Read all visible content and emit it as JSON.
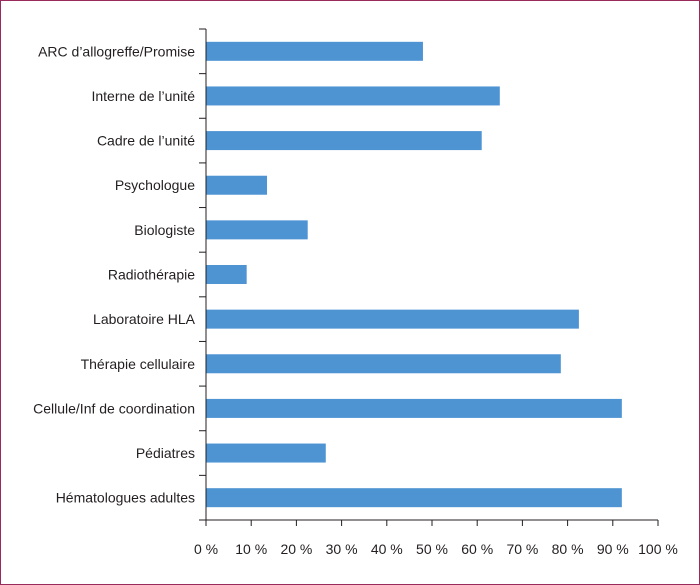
{
  "chart_data": {
    "type": "bar",
    "orientation": "horizontal",
    "categories": [
      "ARC d’allogreffe/Promise",
      "Interne de l’unité",
      "Cadre de l’unité",
      "Psychologue",
      "Biologiste",
      "Radiothérapie",
      "Laboratoire HLA",
      "Thérapie cellulaire",
      "Cellule/Inf de coordination",
      "Pédiatres",
      "Hématologues adultes"
    ],
    "values": [
      48,
      65,
      61,
      13.5,
      22.5,
      9,
      82.5,
      78.5,
      92,
      26.5,
      92
    ],
    "xlim": [
      0,
      100
    ],
    "xticks": [
      0,
      10,
      20,
      30,
      40,
      50,
      60,
      70,
      80,
      90,
      100
    ],
    "tick_labels": [
      "0 %",
      "10 %",
      "20 %",
      "30 %",
      "40 %",
      "50 %",
      "60 %",
      "70 %",
      "80 %",
      "90 %",
      "100 %"
    ],
    "grid": false,
    "bar_color": "#4e94d3",
    "frame_color": "#9b2a5c"
  }
}
